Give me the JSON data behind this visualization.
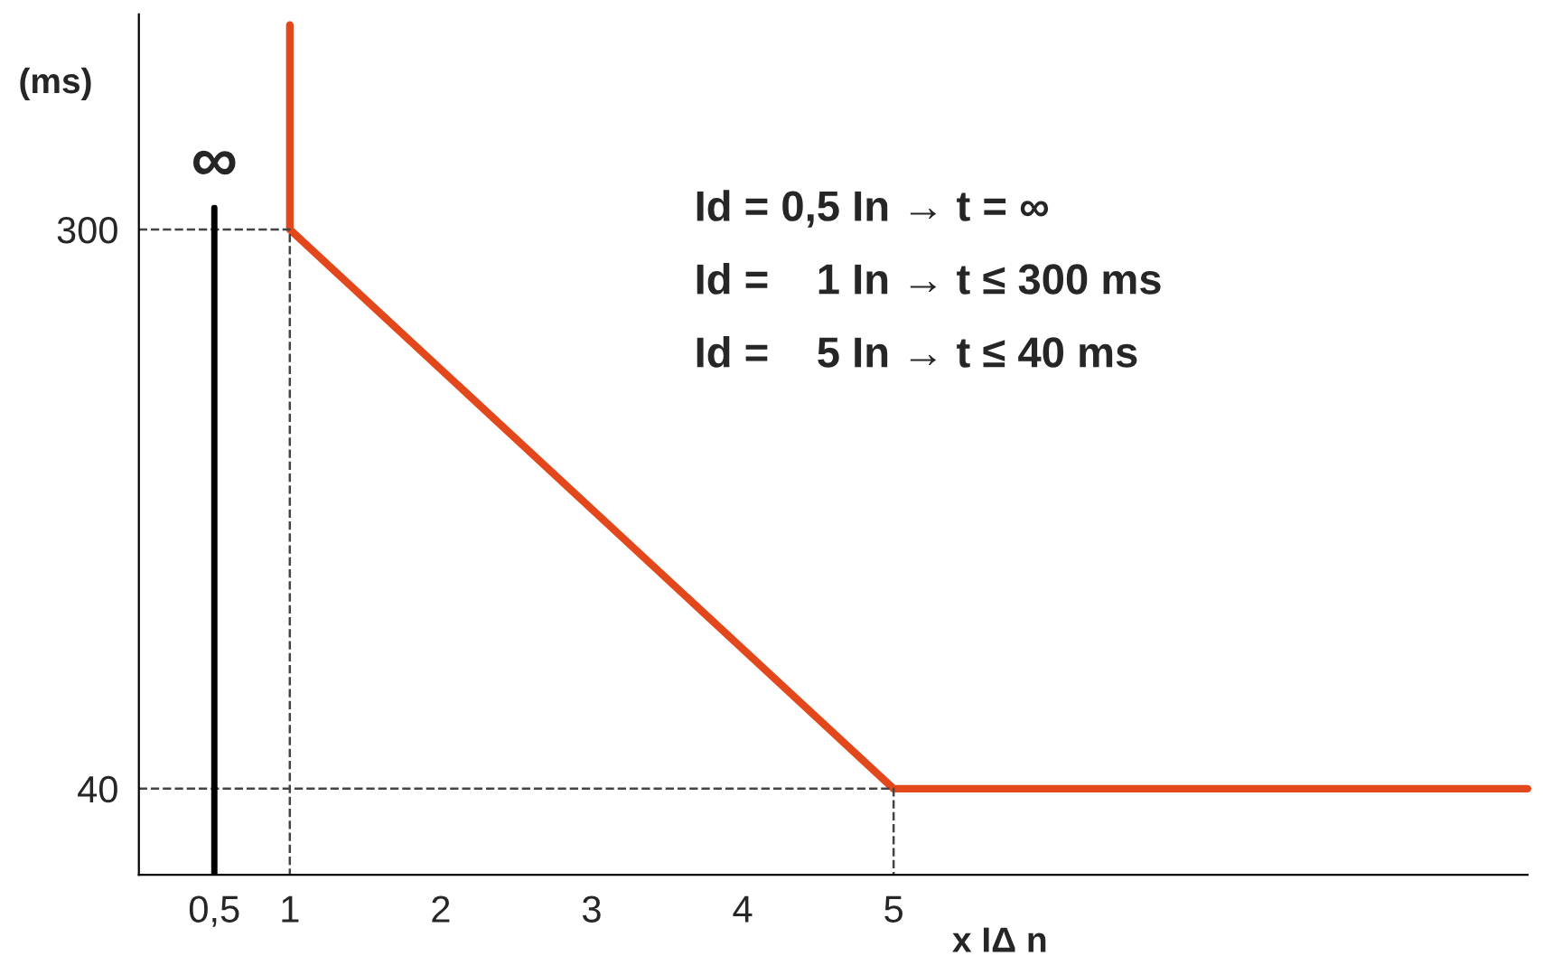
{
  "chart_data": {
    "type": "line",
    "ylabel": "(ms)",
    "xlabel": "x IΔ n",
    "xlim": [
      0,
      9.2
    ],
    "ylim": [
      0,
      400
    ],
    "xticks": [
      {
        "value": 0.5,
        "label": "0,5"
      },
      1,
      2,
      3,
      4,
      5
    ],
    "yticks": [
      40,
      300
    ],
    "legend": false,
    "series": [
      {
        "color": "#e2481c",
        "x": [
          1,
          1,
          5,
          9.2
        ],
        "values": [
          395,
          300,
          40,
          40
        ]
      },
      {
        "color": "#444444",
        "line_style": "dashed",
        "x": [
          0,
          1,
          1
        ],
        "values": [
          300,
          300,
          0
        ]
      },
      {
        "color": "#444444",
        "line_style": "dashed",
        "x": [
          0,
          5,
          5
        ],
        "values": [
          40,
          40,
          0
        ]
      }
    ],
    "ref_lines": [
      {
        "axis": "x",
        "value": 0.5,
        "label": "∞",
        "color": "#000000"
      }
    ],
    "annotations": [
      "Id = 0,5 In → t = ∞",
      "Id =    1 In → t ≤ 300 ms",
      "Id =    5 In → t ≤ 40 ms"
    ]
  }
}
